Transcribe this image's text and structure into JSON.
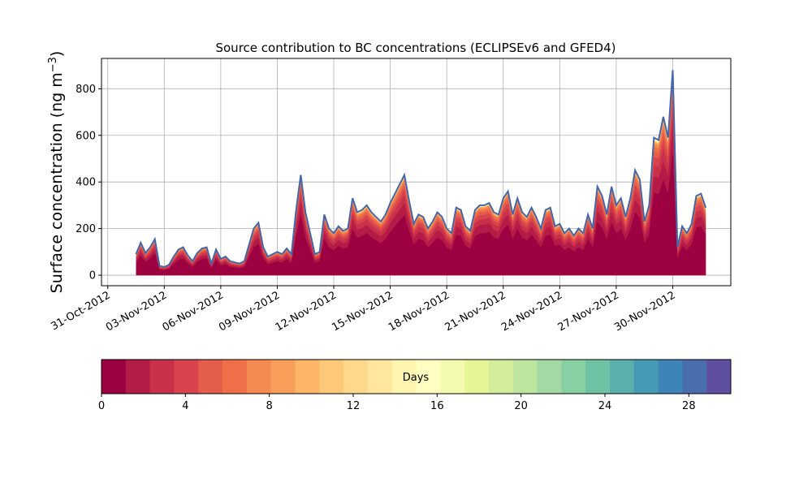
{
  "chart_data": {
    "type": "area",
    "title": "Source contribution to BC concentrations (ECLIPSEv6 and GFED4)",
    "ylabel_main": "Surface concentration (ng m",
    "ylabel_sup": "−3",
    "ylabel_end": ")",
    "xlabel": "",
    "grid": true,
    "ylim": [
      -45,
      930
    ],
    "yticks": [
      0,
      200,
      400,
      600,
      800
    ],
    "xlim": [
      "2012-10-30T16:00",
      "2012-12-03T02:00"
    ],
    "xticks": [
      "31-Oct-2012",
      "03-Nov-2012",
      "06-Nov-2012",
      "09-Nov-2012",
      "12-Nov-2012",
      "15-Nov-2012",
      "18-Nov-2012",
      "21-Nov-2012",
      "24-Nov-2012",
      "27-Nov-2012",
      "30-Nov-2012"
    ],
    "colorbar": {
      "label": "Days",
      "min": 0,
      "max": 30,
      "ticks": [
        0,
        4,
        8,
        12,
        16,
        20,
        24,
        28
      ],
      "colors": [
        "#9e0142",
        "#b41c47",
        "#c9314b",
        "#d8434d",
        "#e45c4a",
        "#ef6f48",
        "#f68b52",
        "#fa9f5a",
        "#fcb466",
        "#fdc878",
        "#fed88c",
        "#fee69c",
        "#fff4b0",
        "#fffec0",
        "#f4fab0",
        "#e6f598",
        "#d4ed9b",
        "#bde5a0",
        "#a2d9a4",
        "#88cfa4",
        "#6fc3a5",
        "#5aaeab",
        "#4699b3",
        "#3d84b8",
        "#4a6db0",
        "#5e4fa2"
      ]
    },
    "series_note_colors": {
      "dominant": "#9e0142",
      "envelope": "#4465a8"
    },
    "total_series": {
      "x": [
        "2012-11-01T12:00",
        "2012-11-01T18:00",
        "2012-11-02T00:00",
        "2012-11-02T06:00",
        "2012-11-02T12:00",
        "2012-11-02T18:00",
        "2012-11-03T00:00",
        "2012-11-03T06:00",
        "2012-11-03T12:00",
        "2012-11-03T18:00",
        "2012-11-04T00:00",
        "2012-11-04T06:00",
        "2012-11-04T12:00",
        "2012-11-04T18:00",
        "2012-11-05T00:00",
        "2012-11-05T06:00",
        "2012-11-05T12:00",
        "2012-11-05T18:00",
        "2012-11-06T00:00",
        "2012-11-06T06:00",
        "2012-11-06T12:00",
        "2012-11-06T18:00",
        "2012-11-07T00:00",
        "2012-11-07T06:00",
        "2012-11-07T12:00",
        "2012-11-07T18:00",
        "2012-11-08T00:00",
        "2012-11-08T06:00",
        "2012-11-08T12:00",
        "2012-11-08T18:00",
        "2012-11-09T00:00",
        "2012-11-09T06:00",
        "2012-11-09T12:00",
        "2012-11-09T18:00",
        "2012-11-10T00:00",
        "2012-11-10T06:00",
        "2012-11-10T12:00",
        "2012-11-10T18:00",
        "2012-11-11T00:00",
        "2012-11-11T06:00",
        "2012-11-11T12:00",
        "2012-11-11T18:00",
        "2012-11-12T00:00",
        "2012-11-12T06:00",
        "2012-11-12T12:00",
        "2012-11-12T18:00",
        "2012-11-13T00:00",
        "2012-11-13T06:00",
        "2012-11-13T12:00",
        "2012-11-13T18:00",
        "2012-11-14T00:00",
        "2012-11-14T06:00",
        "2012-11-14T12:00",
        "2012-11-14T18:00",
        "2012-11-15T00:00",
        "2012-11-15T06:00",
        "2012-11-15T12:00",
        "2012-11-15T18:00",
        "2012-11-16T00:00",
        "2012-11-16T06:00",
        "2012-11-16T12:00",
        "2012-11-16T18:00",
        "2012-11-17T00:00",
        "2012-11-17T06:00",
        "2012-11-17T12:00",
        "2012-11-17T18:00",
        "2012-11-18T00:00",
        "2012-11-18T06:00",
        "2012-11-18T12:00",
        "2012-11-18T18:00",
        "2012-11-19T00:00",
        "2012-11-19T06:00",
        "2012-11-19T12:00",
        "2012-11-19T18:00",
        "2012-11-20T00:00",
        "2012-11-20T06:00",
        "2012-11-20T12:00",
        "2012-11-20T18:00",
        "2012-11-21T00:00",
        "2012-11-21T06:00",
        "2012-11-21T12:00",
        "2012-11-21T18:00",
        "2012-11-22T00:00",
        "2012-11-22T06:00",
        "2012-11-22T12:00",
        "2012-11-22T18:00",
        "2012-11-23T00:00",
        "2012-11-23T06:00",
        "2012-11-23T12:00",
        "2012-11-23T18:00",
        "2012-11-24T00:00",
        "2012-11-24T06:00",
        "2012-11-24T12:00",
        "2012-11-24T18:00",
        "2012-11-25T00:00",
        "2012-11-25T06:00",
        "2012-11-25T12:00",
        "2012-11-25T18:00",
        "2012-11-26T00:00",
        "2012-11-26T06:00",
        "2012-11-26T12:00",
        "2012-11-26T18:00",
        "2012-11-27T00:00",
        "2012-11-27T06:00",
        "2012-11-27T12:00",
        "2012-11-27T18:00",
        "2012-11-28T00:00",
        "2012-11-28T06:00",
        "2012-11-28T12:00",
        "2012-11-28T18:00",
        "2012-11-29T00:00",
        "2012-11-29T06:00",
        "2012-11-29T12:00",
        "2012-11-29T18:00",
        "2012-11-30T00:00",
        "2012-11-30T06:00",
        "2012-11-30T12:00",
        "2012-11-30T18:00",
        "2012-12-01T00:00",
        "2012-12-01T06:00",
        "2012-12-01T12:00",
        "2012-12-01T18:00"
      ],
      "values": [
        90,
        140,
        95,
        120,
        155,
        40,
        35,
        45,
        80,
        110,
        120,
        85,
        60,
        95,
        115,
        120,
        50,
        110,
        70,
        80,
        60,
        55,
        50,
        60,
        130,
        200,
        225,
        120,
        80,
        90,
        100,
        90,
        115,
        90,
        280,
        430,
        270,
        180,
        90,
        100,
        260,
        200,
        180,
        210,
        190,
        200,
        330,
        270,
        280,
        300,
        270,
        250,
        230,
        260,
        310,
        350,
        390,
        430,
        320,
        220,
        260,
        250,
        200,
        230,
        270,
        250,
        200,
        180,
        290,
        280,
        210,
        190,
        280,
        300,
        300,
        310,
        270,
        260,
        330,
        360,
        260,
        330,
        270,
        250,
        290,
        250,
        200,
        280,
        290,
        210,
        220,
        180,
        200,
        170,
        200,
        180,
        260,
        200,
        380,
        340,
        260,
        380,
        300,
        330,
        250,
        330,
        450,
        410,
        230,
        300,
        590,
        580,
        680,
        590,
        880,
        120,
        210,
        180,
        220,
        340,
        350,
        290
      ]
    }
  }
}
